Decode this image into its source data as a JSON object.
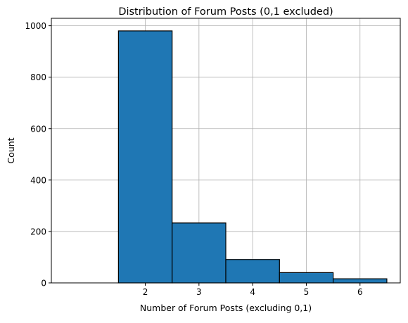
{
  "chart_data": {
    "type": "bar",
    "title": "Distribution of Forum Posts (0,1 excluded)",
    "xlabel": "Number of Forum Posts (excluding 0,1)",
    "ylabel": "Count",
    "bins": [
      {
        "start": 0.5,
        "end": 1.5,
        "value": 0
      },
      {
        "start": 1.5,
        "end": 2.5,
        "value": 980
      },
      {
        "start": 2.5,
        "end": 3.5,
        "value": 233
      },
      {
        "start": 3.5,
        "end": 4.5,
        "value": 91
      },
      {
        "start": 4.5,
        "end": 5.5,
        "value": 40
      },
      {
        "start": 5.5,
        "end": 6.5,
        "value": 16
      }
    ],
    "xlim": [
      0.25,
      6.75
    ],
    "ylim": [
      0,
      1029
    ],
    "xticks": [
      2,
      3,
      4,
      5,
      6
    ],
    "yticks": [
      0,
      200,
      400,
      600,
      800,
      1000
    ],
    "grid": true,
    "colors": {
      "bar_fill": "#1f77b4",
      "bar_edge": "#000000",
      "grid": "#b0b0b0"
    }
  }
}
